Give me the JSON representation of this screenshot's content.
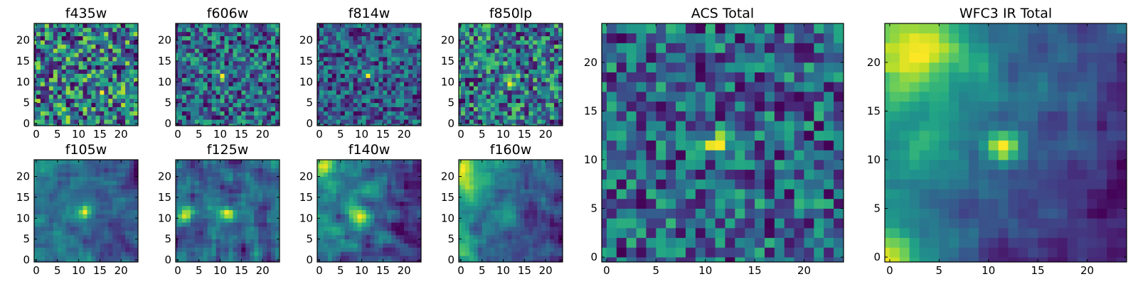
{
  "figure": {
    "panels": [
      {
        "id": "f435w",
        "title": "f435w",
        "size": "small",
        "xticks": [
          0,
          5,
          10,
          15,
          20
        ],
        "yticks": [
          0,
          5,
          10,
          15,
          20
        ],
        "seed": 11,
        "noise": 0.3,
        "smooth": 0,
        "base": 0.52,
        "hotspots": [
          {
            "x": 16,
            "y": 7,
            "a": 0.35,
            "s": 0.6
          }
        ]
      },
      {
        "id": "f606w",
        "title": "f606w",
        "size": "small",
        "xticks": [
          0,
          5,
          10,
          15,
          20
        ],
        "yticks": [
          0,
          5,
          10,
          15,
          20
        ],
        "seed": 23,
        "noise": 0.3,
        "smooth": 0,
        "base": 0.45,
        "hotspots": [
          {
            "x": 11,
            "y": 12,
            "a": 0.45,
            "s": 0.7
          },
          {
            "x": 10,
            "y": 20,
            "a": 0.3,
            "s": 0.6
          }
        ]
      },
      {
        "id": "f814w",
        "title": "f814w",
        "size": "small",
        "xticks": [
          0,
          5,
          10,
          15,
          20
        ],
        "yticks": [
          0,
          5,
          10,
          15,
          20
        ],
        "seed": 37,
        "noise": 0.28,
        "smooth": 0,
        "base": 0.4,
        "hotspots": [
          {
            "x": 12,
            "y": 12,
            "a": 0.5,
            "s": 0.6
          }
        ]
      },
      {
        "id": "f850lp",
        "title": "f850lp",
        "size": "small",
        "xticks": [
          0,
          5,
          10,
          15,
          20
        ],
        "yticks": [
          0,
          5,
          10,
          15,
          20
        ],
        "seed": 41,
        "noise": 0.28,
        "smooth": 0,
        "base": 0.38,
        "hotspots": [
          {
            "x": 12,
            "y": 11,
            "a": 0.5,
            "s": 0.7
          },
          {
            "x": 14,
            "y": 12,
            "a": 0.35,
            "s": 0.6
          }
        ]
      },
      {
        "id": "f105w",
        "title": "f105w",
        "size": "small",
        "xticks": [
          0,
          5,
          10,
          15,
          20
        ],
        "yticks": [
          0,
          5,
          10,
          15,
          20
        ],
        "seed": 53,
        "noise": 0.2,
        "smooth": 1,
        "base": 0.45,
        "hotspots": [
          {
            "x": 12,
            "y": 12,
            "a": 0.5,
            "s": 1.2
          }
        ],
        "gradient": {
          "dx": -0.008,
          "dy": 0.0
        }
      },
      {
        "id": "f125w",
        "title": "f125w",
        "size": "small",
        "xticks": [
          0,
          5,
          10,
          15,
          20
        ],
        "yticks": [
          0,
          5,
          10,
          15,
          20
        ],
        "seed": 67,
        "noise": 0.22,
        "smooth": 1,
        "base": 0.5,
        "hotspots": [
          {
            "x": 12,
            "y": 12,
            "a": 0.4,
            "s": 1.2
          },
          {
            "x": 2,
            "y": 11,
            "a": 0.3,
            "s": 1.5
          }
        ]
      },
      {
        "id": "f140w",
        "title": "f140w",
        "size": "small",
        "xticks": [
          0,
          5,
          10,
          15,
          20
        ],
        "yticks": [
          0,
          5,
          10,
          15,
          20
        ],
        "seed": 71,
        "noise": 0.22,
        "smooth": 1,
        "base": 0.58,
        "hotspots": [
          {
            "x": 2,
            "y": 23,
            "a": 0.3,
            "s": 2.0
          },
          {
            "x": 10,
            "y": 11,
            "a": 0.35,
            "s": 1.5
          }
        ],
        "gradient": {
          "dx": -0.01,
          "dy": 0.004
        }
      },
      {
        "id": "f160w",
        "title": "f160w",
        "size": "small",
        "xticks": [
          0,
          5,
          10,
          15,
          20
        ],
        "yticks": [
          0,
          5,
          10,
          15,
          20
        ],
        "seed": 83,
        "noise": 0.2,
        "smooth": 1,
        "base": 0.48,
        "hotspots": [
          {
            "x": 1,
            "y": 22,
            "a": 0.45,
            "s": 2.5
          },
          {
            "x": 12,
            "y": 11,
            "a": 0.3,
            "s": 1.3
          },
          {
            "x": 1,
            "y": 3,
            "a": 0.3,
            "s": 1.8
          }
        ],
        "gradient": {
          "dx": -0.012,
          "dy": 0.004
        }
      },
      {
        "id": "acs-total",
        "title": "ACS Total",
        "size": "large",
        "xticks": [
          0,
          5,
          10,
          15,
          20
        ],
        "yticks": [
          0,
          5,
          10,
          15,
          20
        ],
        "seed": 97,
        "noise": 0.22,
        "smooth": 0,
        "base": 0.45,
        "hotspots": [
          {
            "x": 12,
            "y": 12,
            "a": 0.55,
            "s": 0.8
          }
        ]
      },
      {
        "id": "wfc3-ir-total",
        "title": "WFC3 IR Total",
        "size": "large",
        "xticks": [
          0,
          5,
          10,
          15,
          20
        ],
        "yticks": [
          0,
          5,
          10,
          15,
          20
        ],
        "seed": 109,
        "noise": 0.12,
        "smooth": 1,
        "base": 0.45,
        "hotspots": [
          {
            "x": 12,
            "y": 12,
            "a": 0.45,
            "s": 1.2
          },
          {
            "x": 3,
            "y": 22,
            "a": 0.35,
            "s": 3.0
          },
          {
            "x": 0,
            "y": 0,
            "a": 0.3,
            "s": 2.5
          }
        ],
        "gradient": {
          "dx": -0.014,
          "dy": 0.006
        }
      }
    ]
  },
  "chart_data": [
    {
      "type": "heatmap",
      "title": "f435w",
      "grid": [
        25,
        25
      ],
      "xlim": [
        0,
        24
      ],
      "ylim": [
        0,
        24
      ],
      "colormap": "viridis",
      "bright_features": "scattered single-pixel peaks near (16,7)"
    },
    {
      "type": "heatmap",
      "title": "f606w",
      "grid": [
        25,
        25
      ],
      "xlim": [
        0,
        24
      ],
      "ylim": [
        0,
        24
      ],
      "colormap": "viridis",
      "bright_features": "peak near (11,12)"
    },
    {
      "type": "heatmap",
      "title": "f814w",
      "grid": [
        25,
        25
      ],
      "xlim": [
        0,
        24
      ],
      "ylim": [
        0,
        24
      ],
      "colormap": "viridis",
      "bright_features": "peak near (12,12)"
    },
    {
      "type": "heatmap",
      "title": "f850lp",
      "grid": [
        25,
        25
      ],
      "xlim": [
        0,
        24
      ],
      "ylim": [
        0,
        24
      ],
      "colormap": "viridis",
      "bright_features": "peaks near (12,11) and (14,12)"
    },
    {
      "type": "heatmap",
      "title": "f105w",
      "grid": [
        25,
        25
      ],
      "xlim": [
        0,
        24
      ],
      "ylim": [
        0,
        24
      ],
      "colormap": "viridis",
      "bright_features": "peak near (12,12)"
    },
    {
      "type": "heatmap",
      "title": "f125w",
      "grid": [
        25,
        25
      ],
      "xlim": [
        0,
        24
      ],
      "ylim": [
        0,
        24
      ],
      "colormap": "viridis",
      "bright_features": "peak near (12,12)"
    },
    {
      "type": "heatmap",
      "title": "f140w",
      "grid": [
        25,
        25
      ],
      "xlim": [
        0,
        24
      ],
      "ylim": [
        0,
        24
      ],
      "colormap": "viridis",
      "bright_features": "bright upper-left region and (10,11)"
    },
    {
      "type": "heatmap",
      "title": "f160w",
      "grid": [
        25,
        25
      ],
      "xlim": [
        0,
        24
      ],
      "ylim": [
        0,
        24
      ],
      "colormap": "viridis",
      "bright_features": "bright upper-left edge, lower-left edge, (12,11)"
    },
    {
      "type": "heatmap",
      "title": "ACS Total",
      "grid": [
        25,
        25
      ],
      "xlim": [
        0,
        24
      ],
      "ylim": [
        0,
        24
      ],
      "colormap": "viridis",
      "bright_features": "peak at (12,12)"
    },
    {
      "type": "heatmap",
      "title": "WFC3 IR Total",
      "grid": [
        25,
        25
      ],
      "xlim": [
        0,
        24
      ],
      "ylim": [
        0,
        24
      ],
      "colormap": "viridis",
      "bright_features": "peak at (12,12), bright upper-left corner"
    }
  ]
}
